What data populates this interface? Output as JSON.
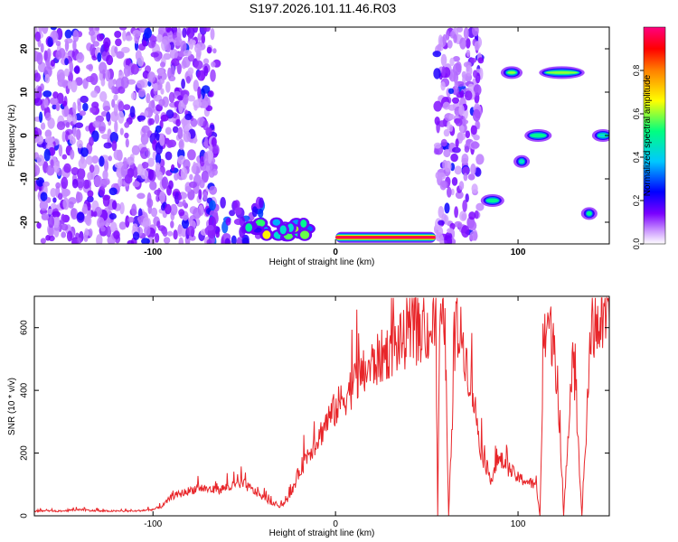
{
  "title": "S197.2026.101.11.46.R03",
  "chart_data": [
    {
      "type": "heatmap",
      "xlabel": "Height of straight line (km)",
      "ylabel": "Frequency (Hz)",
      "xlim": [
        -165,
        150
      ],
      "ylim": [
        -25,
        25
      ],
      "xticks": [
        -100,
        0,
        100
      ],
      "yticks": [
        -20,
        -10,
        0,
        10,
        20
      ],
      "colorbar": {
        "label": "Normalized spectral amplitude",
        "range": [
          0,
          1
        ],
        "ticks": [
          0.0,
          0.2,
          0.4,
          0.6,
          0.8
        ],
        "stops": [
          "#ffffff",
          "#cc99ff",
          "#7a00ff",
          "#0000ff",
          "#00c8ff",
          "#00ff80",
          "#ffff00",
          "#ff8000",
          "#ff0000",
          "#ff0080"
        ]
      },
      "grid": false,
      "features": [
        {
          "x": [
            -165,
            -65
          ],
          "f": [
            -25,
            25
          ],
          "kind": "diffuse noise",
          "amplitude": 0.2
        },
        {
          "x": [
            -70,
            -40
          ],
          "f": [
            -25,
            -15
          ],
          "kind": "noise patches",
          "amplitude": 0.4
        },
        {
          "x": [
            -50,
            -10
          ],
          "f": [
            -25,
            -20
          ],
          "kind": "bursts",
          "amplitude": 0.5
        },
        {
          "x": [
            0,
            55
          ],
          "f": [
            -24,
            -23
          ],
          "kind": "strong band",
          "amplitude": 1.0
        },
        {
          "x": [
            55,
            80
          ],
          "f": [
            -25,
            25
          ],
          "kind": "diffuse noise",
          "amplitude": 0.2
        },
        {
          "x": [
            82,
            90
          ],
          "f": [
            -15,
            -15
          ],
          "kind": "spot",
          "amplitude": 0.5
        },
        {
          "x": [
            93,
            100
          ],
          "f": [
            14,
            15
          ],
          "kind": "spot",
          "amplitude": 0.6
        },
        {
          "x": [
            100,
            104
          ],
          "f": [
            -7,
            -5
          ],
          "kind": "spot",
          "amplitude": 0.4
        },
        {
          "x": [
            106,
            116
          ],
          "f": [
            0,
            0
          ],
          "kind": "spot",
          "amplitude": 0.5
        },
        {
          "x": [
            114,
            134
          ],
          "f": [
            14,
            15
          ],
          "kind": "spot",
          "amplitude": 0.6
        },
        {
          "x": [
            137,
            141
          ],
          "f": [
            -18,
            -18
          ],
          "kind": "spot",
          "amplitude": 0.5
        },
        {
          "x": [
            143,
            150
          ],
          "f": [
            0,
            0
          ],
          "kind": "spot",
          "amplitude": 0.4
        }
      ]
    },
    {
      "type": "line",
      "xlabel": "Height of straight line (km)",
      "ylabel": "SNR (10 * v/v)",
      "xlim": [
        -165,
        150
      ],
      "ylim": [
        0,
        700
      ],
      "xticks": [
        -100,
        0,
        100
      ],
      "yticks": [
        0,
        200,
        400,
        600
      ],
      "grid": false,
      "series": [
        {
          "color": "#e8262a",
          "x": [
            -165,
            -150,
            -140,
            -130,
            -120,
            -110,
            -100,
            -95,
            -90,
            -85,
            -80,
            -75,
            -70,
            -65,
            -60,
            -55,
            -50,
            -45,
            -40,
            -35,
            -30,
            -25,
            -20,
            -15,
            -10,
            -5,
            0,
            10,
            20,
            30,
            40,
            50,
            55,
            56,
            57,
            60,
            62,
            66,
            70,
            72,
            75,
            80,
            85,
            90,
            95,
            100,
            105,
            110,
            112,
            114,
            116,
            118,
            120,
            125,
            130,
            135,
            140,
            145,
            150
          ],
          "y": [
            15,
            15,
            20,
            15,
            15,
            15,
            20,
            30,
            60,
            70,
            80,
            90,
            85,
            80,
            90,
            95,
            100,
            80,
            60,
            40,
            30,
            60,
            140,
            200,
            240,
            300,
            340,
            420,
            480,
            530,
            570,
            590,
            595,
            0,
            600,
            600,
            0,
            590,
            560,
            480,
            400,
            200,
            120,
            180,
            150,
            120,
            110,
            95,
            0,
            520,
            620,
            580,
            560,
            0,
            550,
            0,
            580,
            610,
            620
          ]
        }
      ]
    }
  ]
}
